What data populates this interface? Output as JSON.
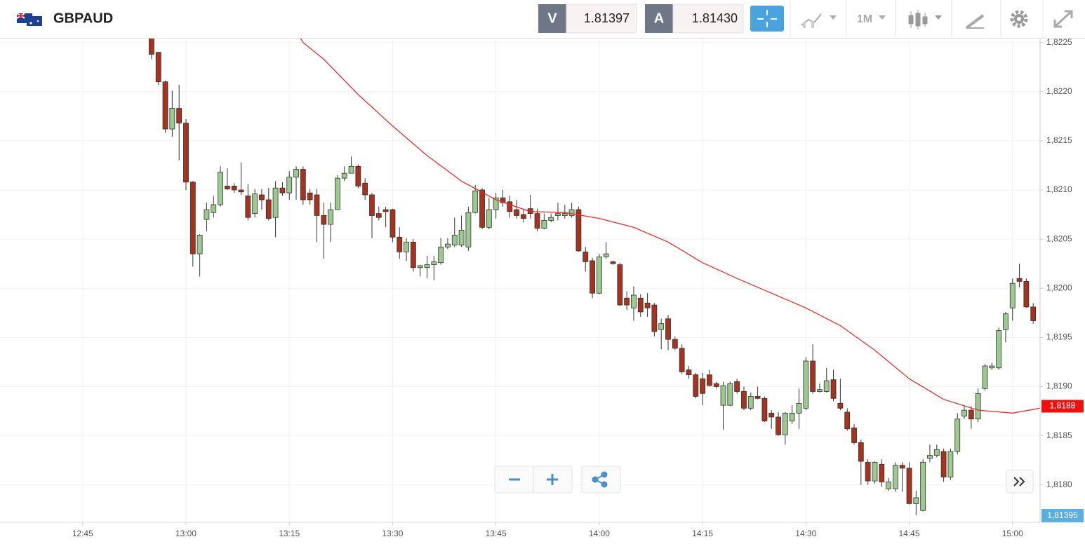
{
  "header": {
    "symbol": "GBPAUD",
    "bid_label": "V",
    "bid": "1.81397",
    "ask_label": "A",
    "ask": "1.81430",
    "timeframe": "1M"
  },
  "chart_data": {
    "type": "candlestick",
    "x": [
      "12:55",
      "12:56",
      "12:57",
      "12:58",
      "12:59",
      "13:00",
      "13:01",
      "13:02",
      "13:03",
      "13:04",
      "13:05",
      "13:06",
      "13:07",
      "13:08",
      "13:09",
      "13:10",
      "13:11",
      "13:12",
      "13:13",
      "13:14",
      "13:15",
      "13:16",
      "13:17",
      "13:18",
      "13:19",
      "13:20",
      "13:21",
      "13:22",
      "13:23",
      "13:24",
      "13:25",
      "13:26",
      "13:27",
      "13:28",
      "13:29",
      "13:30",
      "13:31",
      "13:32",
      "13:33",
      "13:34",
      "13:35",
      "13:36",
      "13:37",
      "13:38",
      "13:39",
      "13:40",
      "13:41",
      "13:42",
      "13:43",
      "13:44",
      "13:45",
      "13:46",
      "13:47",
      "13:48",
      "13:49",
      "13:50",
      "13:51",
      "13:52",
      "13:53",
      "13:54",
      "13:55",
      "13:56",
      "13:57",
      "13:58",
      "13:59",
      "14:00",
      "14:01",
      "14:02",
      "14:03",
      "14:04",
      "14:05",
      "14:06",
      "14:07",
      "14:08",
      "14:09",
      "14:10",
      "14:11",
      "14:12",
      "14:13",
      "14:14",
      "14:15",
      "14:16",
      "14:17",
      "14:18",
      "14:19",
      "14:20",
      "14:21",
      "14:22",
      "14:23",
      "14:24",
      "14:25",
      "14:26",
      "14:27",
      "14:28",
      "14:29",
      "14:30",
      "14:31",
      "14:32",
      "14:33",
      "14:34",
      "14:35",
      "14:36",
      "14:37",
      "14:38",
      "14:39",
      "14:40",
      "14:41",
      "14:42",
      "14:43",
      "14:44",
      "14:45",
      "14:46",
      "14:47",
      "14:48",
      "14:49",
      "14:50",
      "14:51",
      "14:52",
      "14:53",
      "14:54",
      "14:55",
      "14:56",
      "14:57",
      "14:58",
      "14:59",
      "15:00",
      "15:01",
      "15:02",
      "15:03"
    ],
    "open": [
      1.8227,
      1.8224,
      1.8221,
      1.82162,
      1.82183,
      1.82168,
      1.82108,
      1.82035,
      1.8207,
      1.82077,
      1.82085,
      1.82104,
      1.82104,
      1.821,
      1.82094,
      1.82076,
      1.82095,
      1.8209,
      1.82072,
      1.82102,
      1.82097,
      1.82113,
      1.82121,
      1.82097,
      1.82095,
      1.82074,
      1.82065,
      1.8208,
      1.82112,
      1.82117,
      1.82124,
      1.82107,
      1.82095,
      1.82076,
      1.8208,
      1.8208,
      1.82052,
      1.82037,
      1.82047,
      1.82021,
      1.82021,
      1.82024,
      1.82026,
      1.82042,
      1.82044,
      1.82044,
      1.82042,
      1.82077,
      1.821,
      1.82062,
      1.8208,
      1.82092,
      1.82088,
      1.8208,
      1.82075,
      1.82081,
      1.82076,
      1.82061,
      1.82069,
      1.82074,
      1.82074,
      1.82074,
      1.8208,
      1.82037,
      1.82028,
      1.81995,
      1.82032,
      1.82027,
      1.82024,
      1.8199,
      1.8198,
      1.8199,
      1.81985,
      1.81983,
      1.81958,
      1.81969,
      1.81948,
      1.81939,
      1.81917,
      1.81912,
      1.81908,
      1.81912,
      1.81903,
      1.81881,
      1.81881,
      1.81905,
      1.81895,
      1.81878,
      1.8189,
      1.81888,
      1.81873,
      1.81869,
      1.81851,
      1.81865,
      1.81873,
      1.81878,
      1.81926,
      1.81895,
      1.81895,
      1.81907,
      1.81883,
      1.81874,
      1.81858,
      1.81843,
      1.81823,
      1.81804,
      1.81821,
      1.81796,
      1.81796,
      1.8182,
      1.81817,
      1.81781,
      1.81774,
      1.81827,
      1.8183,
      1.81834,
      1.81808,
      1.81834,
      1.8187,
      1.81876,
      1.81867,
      1.81898,
      1.81919,
      1.81919,
      1.81958,
      1.8198,
      1.8201,
      1.82007,
      1.81981
    ],
    "high": [
      1.8228,
      1.8224,
      1.82211,
      1.82201,
      1.82207,
      1.82172,
      1.82109,
      1.82055,
      1.82087,
      1.82094,
      1.82124,
      1.82122,
      1.82107,
      1.82128,
      1.82106,
      1.82101,
      1.82101,
      1.82102,
      1.82109,
      1.82108,
      1.82119,
      1.82124,
      1.82124,
      1.82101,
      1.82101,
      1.82087,
      1.82087,
      1.82115,
      1.82124,
      1.82134,
      1.82126,
      1.82112,
      1.82097,
      1.82083,
      1.82083,
      1.82081,
      1.82062,
      1.82051,
      1.8205,
      1.82024,
      1.82033,
      1.82033,
      1.82051,
      1.82051,
      1.82072,
      1.82074,
      1.82083,
      1.82105,
      1.82102,
      1.82092,
      1.82097,
      1.821,
      1.82094,
      1.8209,
      1.82081,
      1.82095,
      1.82081,
      1.82076,
      1.82076,
      1.82087,
      1.82085,
      1.82087,
      1.82083,
      1.82042,
      1.82031,
      1.82035,
      1.82047,
      1.82028,
      1.82026,
      1.81997,
      1.82002,
      1.81994,
      1.81995,
      1.81985,
      1.81969,
      1.81973,
      1.81951,
      1.81943,
      1.81921,
      1.81914,
      1.81914,
      1.81917,
      1.81905,
      1.81905,
      1.81905,
      1.81908,
      1.819,
      1.81894,
      1.819,
      1.8189,
      1.81876,
      1.81874,
      1.81874,
      1.81881,
      1.81898,
      1.8193,
      1.81943,
      1.81903,
      1.81919,
      1.81917,
      1.81908,
      1.81878,
      1.81862,
      1.81846,
      1.81826,
      1.81824,
      1.81826,
      1.81807,
      1.81823,
      1.81823,
      1.81823,
      1.81794,
      1.81826,
      1.81841,
      1.81841,
      1.81837,
      1.81837,
      1.81873,
      1.81881,
      1.8188,
      1.81898,
      1.81923,
      1.81924,
      1.8196,
      1.81976,
      1.8201,
      1.82025,
      1.8201,
      1.81985
    ],
    "low": [
      1.82233,
      1.82207,
      1.82158,
      1.82154,
      1.8213,
      1.821,
      1.82022,
      1.82012,
      1.82058,
      1.82072,
      1.82083,
      1.821,
      1.82097,
      1.82095,
      1.82069,
      1.82072,
      1.8208,
      1.82069,
      1.82052,
      1.82094,
      1.8209,
      1.8209,
      1.82085,
      1.82085,
      1.82047,
      1.8203,
      1.82047,
      1.8208,
      1.82109,
      1.82117,
      1.82102,
      1.8209,
      1.82051,
      1.82069,
      1.82062,
      1.82047,
      1.8203,
      1.82028,
      1.82017,
      1.82012,
      1.8201,
      1.82008,
      1.82024,
      1.8204,
      1.82042,
      1.82042,
      1.82038,
      1.82076,
      1.8206,
      1.8206,
      1.82071,
      1.82083,
      1.82072,
      1.82071,
      1.82067,
      1.82071,
      1.82058,
      1.8206,
      1.82067,
      1.82069,
      1.82071,
      1.82072,
      1.82037,
      1.82017,
      1.8199,
      1.81994,
      1.8203,
      1.82024,
      1.81982,
      1.81978,
      1.81967,
      1.81971,
      1.81971,
      1.81951,
      1.81938,
      1.81937,
      1.81937,
      1.81913,
      1.81908,
      1.81888,
      1.81881,
      1.819,
      1.81898,
      1.81856,
      1.8188,
      1.81893,
      1.81876,
      1.81876,
      1.81887,
      1.81864,
      1.81857,
      1.8185,
      1.81841,
      1.81862,
      1.81857,
      1.81876,
      1.81893,
      1.81894,
      1.81894,
      1.81885,
      1.81876,
      1.81855,
      1.81841,
      1.818,
      1.818,
      1.81801,
      1.81798,
      1.81794,
      1.81793,
      1.81793,
      1.8178,
      1.81769,
      1.81773,
      1.81823,
      1.81828,
      1.81803,
      1.81805,
      1.81831,
      1.81867,
      1.81857,
      1.81864,
      1.81896,
      1.81917,
      1.81917,
      1.81945,
      1.81967,
      1.82001,
      1.8198,
      1.81964
    ],
    "close": [
      1.82238,
      1.8221,
      1.82162,
      1.82183,
      1.82168,
      1.82108,
      1.82035,
      1.82054,
      1.8208,
      1.82085,
      1.82118,
      1.82101,
      1.821,
      1.82098,
      1.82072,
      1.82096,
      1.8209,
      1.82071,
      1.82102,
      1.82097,
      1.82113,
      1.82121,
      1.8209,
      1.8209,
      1.82074,
      1.82065,
      1.8208,
      1.82112,
      1.82117,
      1.82124,
      1.82104,
      1.82095,
      1.82074,
      1.82072,
      1.82078,
      1.82052,
      1.82037,
      1.82047,
      1.82021,
      1.82023,
      1.82024,
      1.82027,
      1.82042,
      1.82045,
      1.82054,
      1.82059,
      1.82077,
      1.82099,
      1.82062,
      1.8208,
      1.82092,
      1.82087,
      1.82078,
      1.82074,
      1.82071,
      1.82076,
      1.82061,
      1.82069,
      1.82072,
      1.82076,
      1.82076,
      1.8208,
      1.82038,
      1.82027,
      1.81995,
      1.82032,
      1.82035,
      1.82025,
      1.81983,
      1.81983,
      1.81993,
      1.81976,
      1.8198,
      1.81956,
      1.81964,
      1.81948,
      1.81939,
      1.81915,
      1.81912,
      1.8189,
      1.81893,
      1.81901,
      1.819,
      1.81901,
      1.81903,
      1.81895,
      1.81878,
      1.8189,
      1.81888,
      1.81865,
      1.81869,
      1.81851,
      1.81873,
      1.81873,
      1.81883,
      1.81926,
      1.81895,
      1.81897,
      1.81906,
      1.81888,
      1.81878,
      1.81857,
      1.81843,
      1.81824,
      1.81804,
      1.81823,
      1.81803,
      1.81803,
      1.8182,
      1.81817,
      1.81781,
      1.81787,
      1.81823,
      1.8183,
      1.81836,
      1.81808,
      1.81834,
      1.81867,
      1.81876,
      1.81867,
      1.81893,
      1.81921,
      1.81921,
      1.81957,
      1.81974,
      1.82005,
      1.82007,
      1.81981,
      1.81967
    ],
    "up_color": "#9cc98f",
    "down_color": "#a4331f",
    "line": {
      "x": [
        "13:16",
        "13:17",
        "13:20",
        "13:25",
        "13:30",
        "13:35",
        "13:40",
        "13:45",
        "13:50",
        "13:55",
        "14:00",
        "14:05",
        "14:10",
        "14:15",
        "14:20",
        "14:25",
        "14:30",
        "14:35",
        "14:40",
        "14:45",
        "14:50",
        "14:55",
        "15:00",
        "15:04"
      ],
      "values": [
        1.82262,
        1.8225,
        1.82233,
        1.82197,
        1.82165,
        1.82135,
        1.82109,
        1.8209,
        1.82078,
        1.82077,
        1.82071,
        1.82062,
        1.82047,
        1.82026,
        1.8201,
        1.81995,
        1.8198,
        1.81962,
        1.81937,
        1.81908,
        1.81887,
        1.81876,
        1.81873,
        1.81878
      ],
      "color": "#e0302a"
    },
    "xlim": [
      "12:33",
      "15:04"
    ],
    "xticks": [
      "12:45",
      "13:00",
      "13:15",
      "13:30",
      "13:45",
      "14:00",
      "14:15",
      "14:30",
      "14:45",
      "15:00"
    ],
    "ylim": [
      1.81762,
      1.82254
    ],
    "yticks": [
      {
        "value": 1.818,
        "label": "1,8180"
      },
      {
        "value": 1.8185,
        "label": "1,8185"
      },
      {
        "value": 1.819,
        "label": "1,8190"
      },
      {
        "value": 1.8195,
        "label": "1,8195"
      },
      {
        "value": 1.82,
        "label": "1,8200"
      },
      {
        "value": 1.8205,
        "label": "1,8205"
      },
      {
        "value": 1.821,
        "label": "1,8210"
      },
      {
        "value": 1.8215,
        "label": "1,8215"
      },
      {
        "value": 1.822,
        "label": "1,8220"
      },
      {
        "value": 1.8225,
        "label": "1,8225"
      }
    ],
    "grid": true,
    "last_price": {
      "value": 1.8188,
      "label": "1,8188"
    },
    "cursor_label": "1,81395"
  }
}
